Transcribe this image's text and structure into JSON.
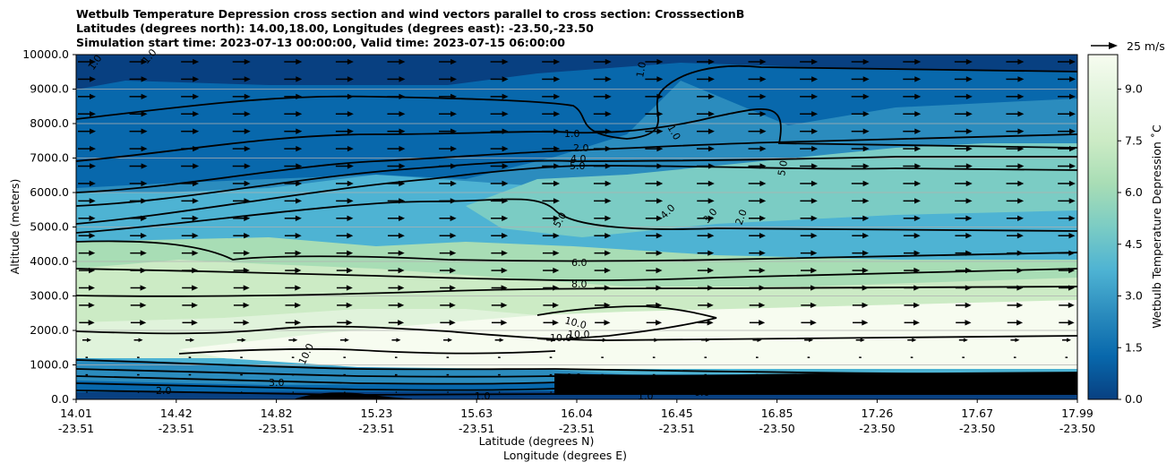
{
  "title_lines": [
    "Wetbulb Temperature Depression cross section and wind vectors parallel to cross section: CrosssectionB",
    "Latitudes (degrees north): 14.00,18.00, Longitudes (degrees east): -23.50,-23.50",
    "Simulation start time: 2023-07-13 00:00:00, Valid time: 2023-07-15 06:00:00"
  ],
  "chart_data": {
    "type": "heatmap",
    "ylabel": "Altitude (meters)",
    "xlabel_primary": "Latitude (degrees N)",
    "xlabel_secondary": "Longitude (degrees E)",
    "ylim": [
      0,
      10000
    ],
    "yticks": [
      "0.0",
      "1000.0",
      "2000.0",
      "3000.0",
      "4000.0",
      "5000.0",
      "6000.0",
      "7000.0",
      "8000.0",
      "9000.0",
      "10000.0"
    ],
    "xticks_lat": [
      "14.01",
      "14.42",
      "14.82",
      "15.23",
      "15.63",
      "16.04",
      "16.45",
      "16.85",
      "17.26",
      "17.67",
      "17.99"
    ],
    "xticks_lon": [
      "-23.51",
      "-23.51",
      "-23.51",
      "-23.51",
      "-23.51",
      "-23.51",
      "-23.51",
      "-23.50",
      "-23.50",
      "-23.50",
      "-23.50"
    ],
    "grid": "horizontal",
    "colorbar": {
      "label": "Wetbulb Temperature Depression ˚C",
      "range": [
        0,
        10
      ],
      "ticks": [
        "0.0",
        "1.5",
        "3.0",
        "4.5",
        "6.0",
        "7.5",
        "9.0"
      ],
      "colormap": [
        "#084081",
        "#0868ac",
        "#2b8cbe",
        "#4eb3d3",
        "#7bccc4",
        "#a8ddb5",
        "#ccebc5",
        "#e0f3db",
        "#f7fcf0"
      ]
    },
    "quiver_key": "25 m/s",
    "contour_labels": [
      "1.0",
      "1.0",
      "1.0",
      "1.0",
      "1.0",
      "2.0",
      "4.0",
      "5.0",
      "5.0",
      "5.0",
      "6.0",
      "8.0",
      "10.0",
      "10.0",
      "10.0",
      "10.0",
      "4.0",
      "3.0",
      "2.0",
      "2.0",
      "3.0",
      "1.0",
      "1.0",
      "0.0",
      "0.0"
    ]
  }
}
